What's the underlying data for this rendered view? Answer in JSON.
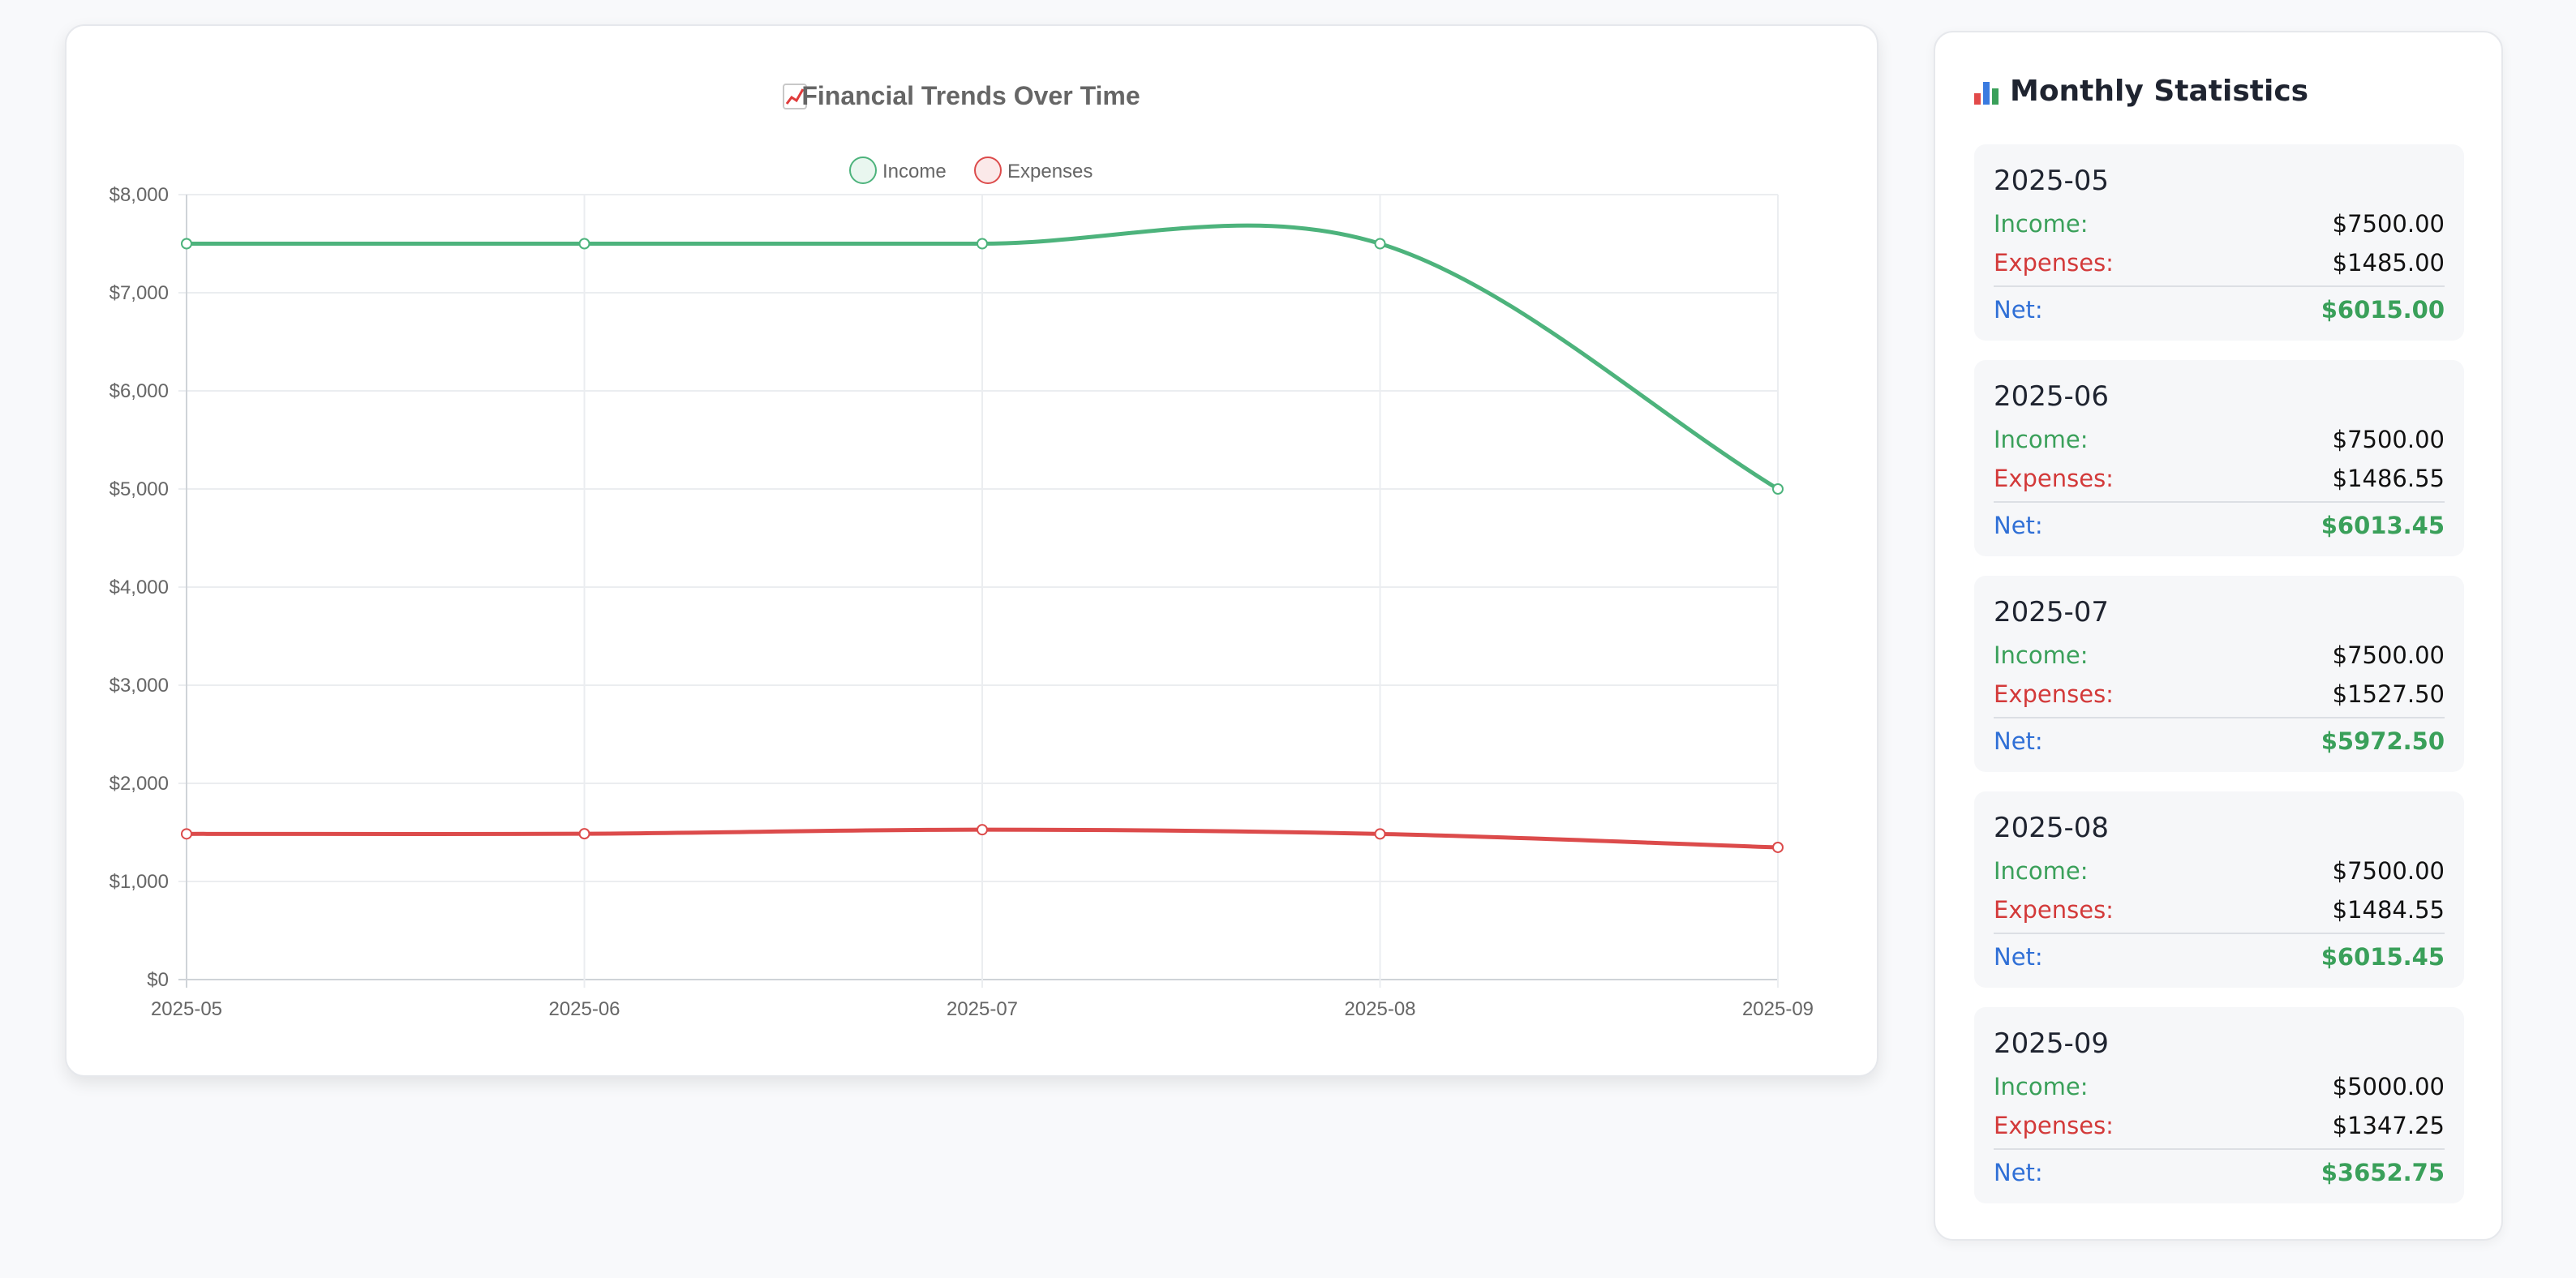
{
  "chart": {
    "title": "Financial Trends Over Time",
    "title_icon": "chart-increasing-icon",
    "legend": [
      {
        "label": "Income",
        "color": "#4db37c"
      },
      {
        "label": "Expenses",
        "color": "#dc4b4b"
      }
    ]
  },
  "chart_data": {
    "type": "line",
    "title": "Financial Trends Over Time",
    "x": [
      "2025-05",
      "2025-06",
      "2025-07",
      "2025-08",
      "2025-09"
    ],
    "series": [
      {
        "name": "Income",
        "values": [
          7500,
          7500,
          7500,
          7500,
          5000
        ],
        "color": "#4db37c"
      },
      {
        "name": "Expenses",
        "values": [
          1485,
          1486.55,
          1527.5,
          1484.55,
          1347.25
        ],
        "color": "#dc4b4b"
      }
    ],
    "ylim": [
      0,
      8000
    ],
    "yticks": [
      "$0",
      "$1,000",
      "$2,000",
      "$3,000",
      "$4,000",
      "$5,000",
      "$6,000",
      "$7,000",
      "$8,000"
    ],
    "legend": "top-center",
    "grid": true,
    "smooth": true
  },
  "stats": {
    "title": "Monthly Statistics",
    "title_icon": "bar-chart-icon",
    "labels": {
      "income": "Income:",
      "expenses": "Expenses:",
      "net": "Net:"
    },
    "months": [
      {
        "month": "2025-05",
        "income": "$7500.00",
        "expenses": "$1485.00",
        "net": "$6015.00"
      },
      {
        "month": "2025-06",
        "income": "$7500.00",
        "expenses": "$1486.55",
        "net": "$6013.45"
      },
      {
        "month": "2025-07",
        "income": "$7500.00",
        "expenses": "$1527.50",
        "net": "$5972.50"
      },
      {
        "month": "2025-08",
        "income": "$7500.00",
        "expenses": "$1484.55",
        "net": "$6015.45"
      },
      {
        "month": "2025-09",
        "income": "$5000.00",
        "expenses": "$1347.25",
        "net": "$3652.75"
      }
    ]
  },
  "colors": {
    "income": "#3aa05a",
    "expenses": "#d33a3a",
    "net": "#2f6fd6"
  }
}
